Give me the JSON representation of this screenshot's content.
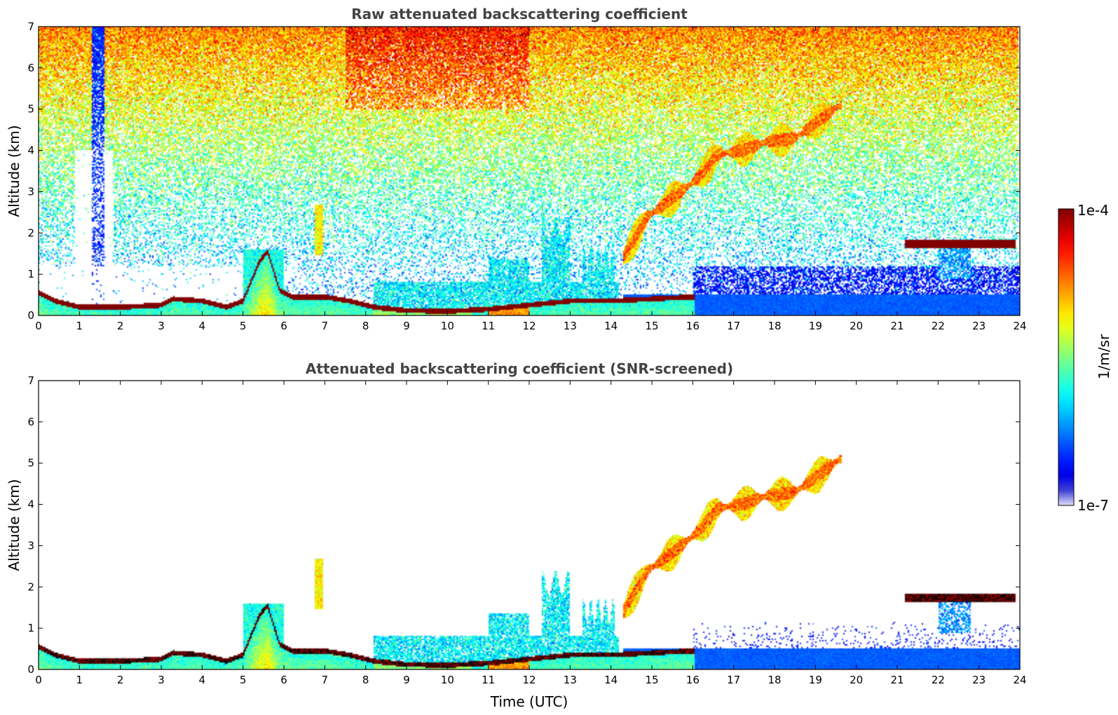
{
  "chart_data": [
    {
      "type": "heatmap",
      "title": "Raw attenuated backscattering coefficient",
      "xlabel": "",
      "ylabel": "Altitude (km)",
      "xlim": [
        0,
        24
      ],
      "ylim": [
        0,
        7
      ],
      "xticks": [
        0,
        1,
        2,
        3,
        4,
        5,
        6,
        7,
        8,
        9,
        10,
        11,
        12,
        13,
        14,
        15,
        16,
        17,
        18,
        19,
        20,
        21,
        22,
        23,
        24
      ],
      "yticks": [
        0,
        1,
        2,
        3,
        4,
        5,
        6,
        7
      ],
      "noise": "strong",
      "features": [
        {
          "kind": "boundary_layer_top",
          "points": [
            [
              0,
              0.55
            ],
            [
              0.4,
              0.35
            ],
            [
              1,
              0.2
            ],
            [
              2,
              0.2
            ],
            [
              3,
              0.25
            ],
            [
              3.3,
              0.4
            ],
            [
              4,
              0.35
            ],
            [
              4.6,
              0.2
            ],
            [
              5,
              0.35
            ],
            [
              5.4,
              1.3
            ],
            [
              5.6,
              1.55
            ],
            [
              5.9,
              0.6
            ],
            [
              6.2,
              0.45
            ],
            [
              7,
              0.45
            ],
            [
              7.6,
              0.35
            ],
            [
              8.2,
              0.2
            ],
            [
              9,
              0.12
            ],
            [
              10,
              0.1
            ],
            [
              11,
              0.15
            ],
            [
              12,
              0.25
            ],
            [
              13,
              0.35
            ],
            [
              14,
              0.35
            ],
            [
              15,
              0.4
            ],
            [
              16,
              0.45
            ]
          ],
          "value": -4.0
        },
        {
          "kind": "cloud",
          "x0": 21.2,
          "x1": 23.9,
          "ybot": 1.62,
          "ytop": 1.82,
          "value": -4.05
        },
        {
          "kind": "aerosol_layer",
          "points": [
            [
              14.3,
              1.4
            ],
            [
              14.9,
              2.4
            ],
            [
              15.6,
              2.9
            ],
            [
              16.2,
              3.4
            ],
            [
              16.6,
              3.9
            ],
            [
              17.2,
              4.0
            ],
            [
              17.8,
              4.2
            ],
            [
              18.5,
              4.3
            ],
            [
              19.2,
              4.8
            ],
            [
              19.6,
              5.1
            ]
          ],
          "thickness": 0.7,
          "value": -5.1
        },
        {
          "kind": "aerosol_plume",
          "x0": 6.75,
          "x1": 6.95,
          "ybot": 1.45,
          "ytop": 2.7,
          "value": -5.2
        }
      ]
    },
    {
      "type": "heatmap",
      "title": "Attenuated backscattering coefficient (SNR-screened)",
      "xlabel": "Time (UTC)",
      "ylabel": "Altitude (km)",
      "xlim": [
        0,
        24
      ],
      "ylim": [
        0,
        7
      ],
      "xticks": [
        0,
        1,
        2,
        3,
        4,
        5,
        6,
        7,
        8,
        9,
        10,
        11,
        12,
        13,
        14,
        15,
        16,
        17,
        18,
        19,
        20,
        21,
        22,
        23,
        24
      ],
      "yticks": [
        0,
        1,
        2,
        3,
        4,
        5,
        6,
        7
      ],
      "noise": "screened",
      "features": [
        {
          "kind": "boundary_layer_top",
          "points": [
            [
              0,
              0.55
            ],
            [
              0.4,
              0.35
            ],
            [
              1,
              0.2
            ],
            [
              2,
              0.2
            ],
            [
              3,
              0.25
            ],
            [
              3.3,
              0.4
            ],
            [
              4,
              0.35
            ],
            [
              4.6,
              0.2
            ],
            [
              5,
              0.35
            ],
            [
              5.4,
              1.3
            ],
            [
              5.6,
              1.55
            ],
            [
              5.9,
              0.6
            ],
            [
              6.2,
              0.45
            ],
            [
              7,
              0.45
            ],
            [
              7.6,
              0.35
            ],
            [
              8.2,
              0.2
            ],
            [
              9,
              0.12
            ],
            [
              10,
              0.1
            ],
            [
              11,
              0.15
            ],
            [
              12,
              0.25
            ],
            [
              13,
              0.35
            ],
            [
              14,
              0.35
            ],
            [
              15,
              0.4
            ],
            [
              16,
              0.45
            ]
          ],
          "value": -4.0
        },
        {
          "kind": "cloud",
          "x0": 21.2,
          "x1": 23.9,
          "ybot": 1.62,
          "ytop": 1.82,
          "value": -4.05
        },
        {
          "kind": "aerosol_layer",
          "points": [
            [
              14.3,
              1.4
            ],
            [
              14.9,
              2.4
            ],
            [
              15.6,
              2.9
            ],
            [
              16.2,
              3.4
            ],
            [
              16.6,
              3.9
            ],
            [
              17.2,
              4.0
            ],
            [
              17.8,
              4.2
            ],
            [
              18.5,
              4.3
            ],
            [
              19.2,
              4.8
            ],
            [
              19.6,
              5.1
            ]
          ],
          "thickness": 0.7,
          "value": -5.1
        },
        {
          "kind": "aerosol_plume",
          "x0": 6.75,
          "x1": 6.95,
          "ybot": 1.45,
          "ytop": 2.7,
          "value": -5.2
        }
      ]
    }
  ],
  "colorbar": {
    "min_label": "1e-7",
    "max_label": "1e-4",
    "unit_label": "1/m/sr",
    "colormap": "jet",
    "log_min": -7,
    "log_max": -4
  }
}
